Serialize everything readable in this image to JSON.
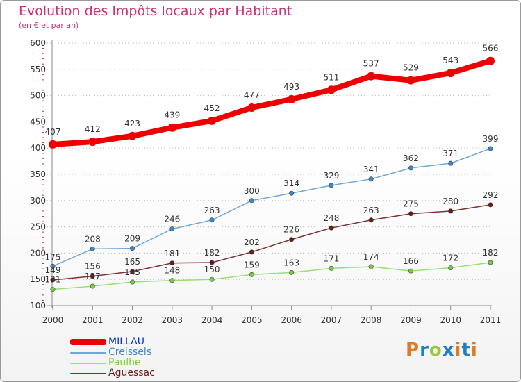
{
  "header": {
    "title": "Evolution des Impôts locaux par Habitant",
    "subtitle": "(en € et par an)"
  },
  "logo": {
    "letters": [
      "P",
      "r",
      "o",
      "x",
      "i",
      "t",
      "i"
    ]
  },
  "colors": {
    "title": "#cc3377",
    "axis": "#888888",
    "grid": "#bbbbbb",
    "tick_label": "#333333",
    "data_label": "#333333",
    "logo_letters": [
      "#e07b25",
      "#1f7fc4",
      "#9ac43a",
      "#1f7fc4",
      "#e07b25",
      "#1f7fc4",
      "#e07b25"
    ]
  },
  "chart_data": {
    "type": "line",
    "title": "Evolution des Impôts locaux par Habitant",
    "subtitle": "(en € et par an)",
    "xlabel": "",
    "ylabel": "",
    "categories": [
      "2000",
      "2001",
      "2002",
      "2003",
      "2004",
      "2005",
      "2006",
      "2007",
      "2008",
      "2009",
      "2010",
      "2011"
    ],
    "ylim": [
      100,
      600
    ],
    "yticks": [
      100,
      150,
      200,
      250,
      300,
      350,
      400,
      450,
      500,
      550,
      600
    ],
    "grid": "horizontal-dashed",
    "legend_position": "bottom-left",
    "series": [
      {
        "name": "MILLAU",
        "color": "#ee0000",
        "point_color": "#ee0000",
        "width": "thick",
        "values": [
          407,
          412,
          423,
          439,
          452,
          477,
          493,
          511,
          537,
          529,
          543,
          566
        ]
      },
      {
        "name": "Creissels",
        "color": "#6fa8d8",
        "point_color": "#3f88c8",
        "width": "thin",
        "values": [
          175,
          208,
          209,
          246,
          263,
          300,
          314,
          329,
          341,
          362,
          371,
          399
        ]
      },
      {
        "name": "Paulhe",
        "color": "#99dd77",
        "point_color": "#77cc44",
        "width": "thin",
        "values": [
          131,
          137,
          145,
          148,
          150,
          159,
          163,
          171,
          174,
          166,
          172,
          182
        ]
      },
      {
        "name": "Aguessac",
        "color": "#7a3333",
        "point_color": "#6b1a1a",
        "width": "thin",
        "values": [
          149,
          156,
          165,
          181,
          182,
          202,
          226,
          248,
          263,
          275,
          280,
          292
        ]
      }
    ]
  }
}
